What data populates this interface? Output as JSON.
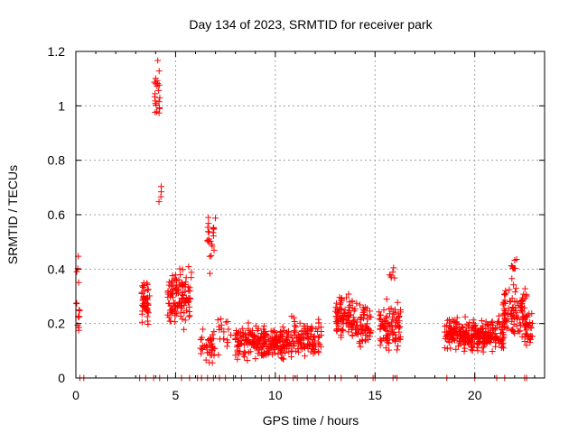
{
  "chart_data": {
    "type": "scatter",
    "title": "Day 134 of 2023, SRMTID for receiver park",
    "xlabel": "GPS time / hours",
    "ylabel": "SRMTID / TECUs",
    "xlim": [
      0,
      23.5
    ],
    "ylim": [
      0,
      1.2
    ],
    "xticks": [
      0,
      5,
      10,
      15,
      20
    ],
    "xtick_labels": [
      "0",
      "5",
      "10",
      "15",
      "20"
    ],
    "yticks": [
      0,
      0.2,
      0.4,
      0.6,
      0.8,
      1,
      1.2
    ],
    "ytick_labels": [
      "0",
      "0.2",
      "0.4",
      "0.6",
      "0.8",
      "1",
      "1.2"
    ],
    "grid": true,
    "marker": "+",
    "series": [
      {
        "name": "SRMTID",
        "color": "#ff0000",
        "clusters": [
          {
            "x": [
              0.0,
              0.2
            ],
            "y_center": 0.3,
            "y_spread": 0.26,
            "n": 14
          },
          {
            "x": [
              3.3,
              3.7
            ],
            "y_center": 0.27,
            "y_spread": 0.12,
            "n": 45
          },
          {
            "x": [
              3.9,
              4.25
            ],
            "y_center": 1.05,
            "y_spread": 0.16,
            "n": 22
          },
          {
            "x": [
              4.1,
              4.3
            ],
            "y_center": 0.7,
            "y_spread": 0.12,
            "n": 4
          },
          {
            "x": [
              4.6,
              5.8
            ],
            "y_center": 0.3,
            "y_spread": 0.13,
            "n": 120
          },
          {
            "x": [
              6.2,
              7.0
            ],
            "y_center": 0.12,
            "y_spread": 0.08,
            "n": 40
          },
          {
            "x": [
              6.6,
              7.0
            ],
            "y_center": 0.5,
            "y_spread": 0.18,
            "n": 22
          },
          {
            "x": [
              7.1,
              7.8
            ],
            "y_center": 0.17,
            "y_spread": 0.1,
            "n": 18
          },
          {
            "x": [
              8.0,
              10.8
            ],
            "y_center": 0.13,
            "y_spread": 0.08,
            "n": 240
          },
          {
            "x": [
              10.8,
              12.3
            ],
            "y_center": 0.15,
            "y_spread": 0.1,
            "n": 110
          },
          {
            "x": [
              13.0,
              14.0
            ],
            "y_center": 0.22,
            "y_spread": 0.11,
            "n": 90
          },
          {
            "x": [
              14.0,
              14.8
            ],
            "y_center": 0.2,
            "y_spread": 0.12,
            "n": 60
          },
          {
            "x": [
              15.2,
              16.3
            ],
            "y_center": 0.19,
            "y_spread": 0.12,
            "n": 90
          },
          {
            "x": [
              15.7,
              16.0
            ],
            "y_center": 0.37,
            "y_spread": 0.04,
            "n": 6
          },
          {
            "x": [
              18.5,
              21.5
            ],
            "y_center": 0.16,
            "y_spread": 0.08,
            "n": 300
          },
          {
            "x": [
              21.4,
              22.6
            ],
            "y_center": 0.24,
            "y_spread": 0.14,
            "n": 110
          },
          {
            "x": [
              21.8,
              22.1
            ],
            "y_center": 0.41,
            "y_spread": 0.04,
            "n": 8
          },
          {
            "x": [
              22.5,
              22.9
            ],
            "y_center": 0.18,
            "y_spread": 0.09,
            "n": 30
          }
        ],
        "zero_points": [
          0.2,
          0.4,
          3.2,
          3.5,
          3.9,
          4.2,
          4.6,
          5.3,
          5.7,
          6.1,
          6.3,
          6.6,
          6.9,
          7.2,
          7.5,
          7.9,
          8.3,
          9.3,
          9.7,
          10.2,
          10.5,
          10.9,
          11.1,
          11.6,
          12.0,
          12.7,
          13.0,
          13.3,
          14.1,
          14.9,
          15.0,
          15.9,
          16.1,
          18.6,
          20.0,
          21.1,
          21.5,
          22.5,
          22.6
        ]
      }
    ]
  }
}
